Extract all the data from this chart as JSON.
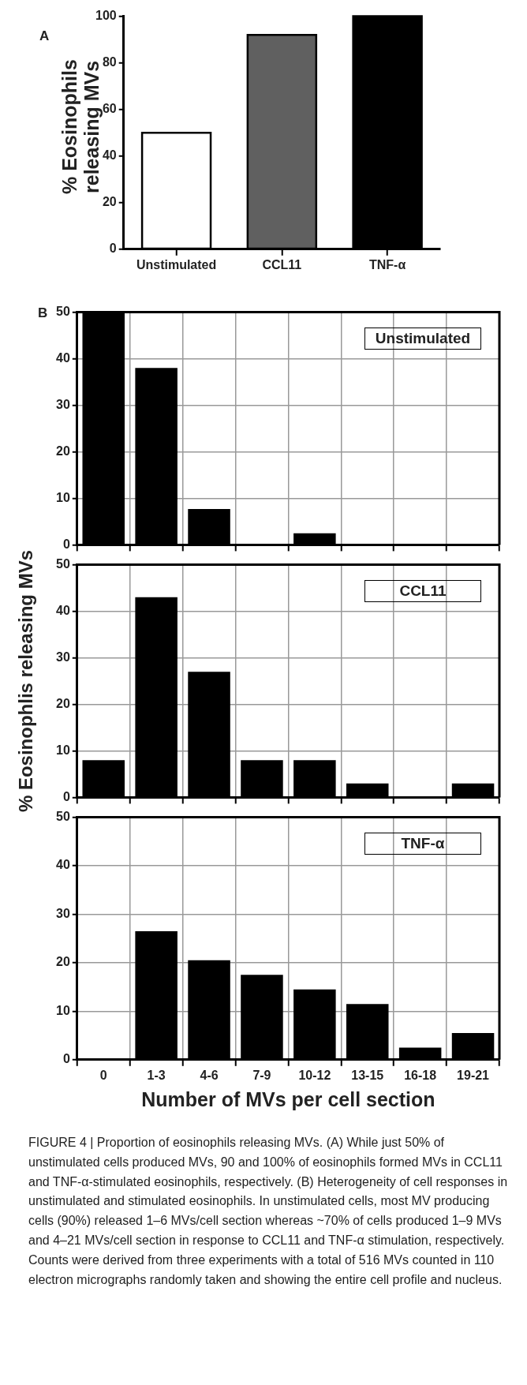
{
  "chart_data": [
    {
      "type": "bar",
      "categories": [
        "Unstimulated",
        "CCL11",
        "TNF-α"
      ],
      "values": [
        50,
        92,
        100
      ],
      "colors": [
        "#ffffff",
        "#606060",
        "#000000"
      ],
      "ylabel": "% Eosinophils releasing MVs",
      "ylim": [
        0,
        100
      ],
      "yticks": [
        0,
        20,
        40,
        60,
        80,
        100
      ],
      "annotations": [
        "A"
      ]
    },
    {
      "type": "bar",
      "title": "Unstimulated",
      "categories": [
        null,
        null,
        null,
        null,
        null,
        null,
        null,
        null
      ],
      "values": [
        50,
        38,
        7.7,
        0,
        2.5,
        0,
        0,
        0
      ],
      "color": "#000000",
      "ylim": [
        0,
        50
      ],
      "yticks": [
        0,
        10,
        20,
        30,
        40,
        50
      ],
      "grid": true,
      "tick_labels": "y",
      "annotations": [
        "B"
      ]
    },
    {
      "type": "bar",
      "title": "CCL11",
      "categories": [
        null,
        null,
        null,
        null,
        null,
        null,
        null,
        null
      ],
      "values": [
        8,
        43,
        27,
        8,
        8,
        3,
        0,
        3
      ],
      "color": "#000000",
      "ylabel": "% Eosinophlis releasing MVs",
      "ylim": [
        0,
        50
      ],
      "yticks": [
        0,
        10,
        20,
        30,
        40,
        50
      ],
      "grid": true,
      "tick_labels": "y"
    },
    {
      "type": "bar",
      "title": "TNF-α",
      "categories": [
        "0",
        "1-3",
        "4-6",
        "7-9",
        "10-12",
        "13-15",
        "16-18",
        "19-21"
      ],
      "values": [
        0,
        26.5,
        20.5,
        17.5,
        14.5,
        11.5,
        2.5,
        5.5
      ],
      "color": "#000000",
      "xlabel": "Number of MVs per cell section",
      "ylim": [
        0,
        50
      ],
      "yticks": [
        0,
        10,
        20,
        30,
        40,
        50
      ],
      "grid": true,
      "annotations": [
        "FIGURE 4 | Proportion of eosinophils releasing MVs. (A) While just 50% of unstimulated cells produced MVs, 90 and 100% of eosinophils formed MVs in CCL11 and TNF-α-stimulated eosinophils, respectively. (B) Heterogeneity of cell responses in unstimulated and stimulated eosinophils. In unstimulated cells, most MV producing cells (90%) released 1–6 MVs/cell section whereas ~70% of cells produced 1–9 MVs and 4–21 MVs/cell section in response to CCL11 and TNF-α stimulation, respectively. Counts were derived from three experiments with a total of 516 MVs counted in 110 electron micrographs randomly taken and showing the entire cell profile and nucleus."
      ]
    }
  ]
}
